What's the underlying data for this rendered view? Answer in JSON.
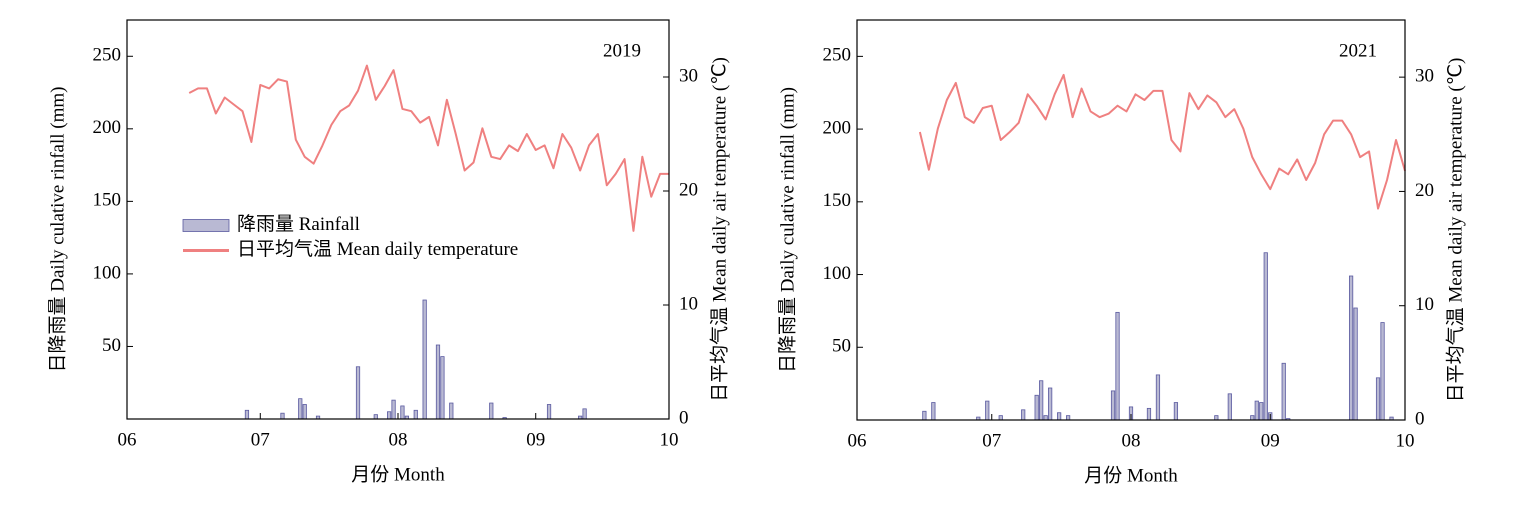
{
  "chart_data": [
    {
      "type": "bar_line",
      "annotation": "2019",
      "xlabel": "月份 Month",
      "ylabel": "日降雨量 Daily culative rinfall (mm)",
      "y2label": "日平均气温 Mean daily air temperature (℃)",
      "legend": "center-left",
      "xlim": [
        0,
        122
      ],
      "xticks": [
        {
          "value": 0,
          "label": "06"
        },
        {
          "value": 30,
          "label": "07"
        },
        {
          "value": 61,
          "label": "08"
        },
        {
          "value": 92,
          "label": "09"
        },
        {
          "value": 122,
          "label": "10"
        }
      ],
      "ylim": [
        0,
        275
      ],
      "yticks": [
        50,
        100,
        150,
        200,
        250
      ],
      "y2lim": [
        0,
        35
      ],
      "y2ticks": [
        0,
        10,
        20,
        30
      ],
      "series": [
        {
          "name": "降雨量 Rainfall",
          "type": "bar",
          "color": "#b9b9d3",
          "x": [
            27,
            35,
            39,
            40,
            43,
            52,
            56,
            59,
            60,
            62,
            63,
            65,
            67,
            70,
            71,
            73,
            82,
            85,
            95,
            102,
            103
          ],
          "values": [
            6,
            4,
            14,
            10,
            2,
            36,
            3,
            5,
            13,
            9,
            2,
            6,
            82,
            51,
            43,
            11,
            11,
            1,
            10,
            2,
            7
          ]
        },
        {
          "name": "日平均气温 Mean daily temperature",
          "type": "line",
          "axis": "y2",
          "color": "#ef8080",
          "x": [
            14,
            16,
            18,
            20,
            22,
            24,
            26,
            28,
            30,
            32,
            34,
            36,
            38,
            40,
            42,
            44,
            46,
            48,
            50,
            52,
            54,
            56,
            58,
            60,
            62,
            64,
            66,
            68,
            70,
            72,
            74,
            76,
            78,
            80,
            82,
            84,
            86,
            88,
            90,
            92,
            94,
            96,
            98,
            100,
            102,
            104,
            106,
            108,
            110,
            112,
            114,
            116,
            118,
            120,
            122
          ],
          "values": [
            28.6,
            29.0,
            29.0,
            26.8,
            28.2,
            27.6,
            27.0,
            24.3,
            29.3,
            29.0,
            29.8,
            29.6,
            24.5,
            23.0,
            22.4,
            24.0,
            25.8,
            27.0,
            27.5,
            28.8,
            31.0,
            28.0,
            29.2,
            30.6,
            27.2,
            27.0,
            26.0,
            26.5,
            24.0,
            28.0,
            25.0,
            21.8,
            22.5,
            25.5,
            23.0,
            22.8,
            24.0,
            23.5,
            25.0,
            23.6,
            24.0,
            22.0,
            25.0,
            23.8,
            21.8,
            24.0,
            25.0,
            20.5,
            21.5,
            22.8,
            16.5,
            23.0,
            19.5,
            21.5,
            21.5
          ]
        }
      ]
    },
    {
      "type": "bar_line",
      "annotation": "2021",
      "xlabel": "月份 Month",
      "ylabel": "日降雨量 Daily culative rinfall (mm)",
      "y2label": "日平均气温 Mean daily air temperature (℃)",
      "xlim": [
        0,
        122
      ],
      "xticks": [
        {
          "value": 0,
          "label": "06"
        },
        {
          "value": 30,
          "label": "07"
        },
        {
          "value": 61,
          "label": "08"
        },
        {
          "value": 92,
          "label": "09"
        },
        {
          "value": 122,
          "label": "10"
        }
      ],
      "ylim": [
        0,
        275
      ],
      "yticks": [
        50,
        100,
        150,
        200,
        250
      ],
      "y2lim": [
        0,
        35
      ],
      "y2ticks": [
        0,
        10,
        20,
        30
      ],
      "series": [
        {
          "type": "bar",
          "color": "#b9b9d3",
          "x": [
            15,
            17,
            27,
            29,
            32,
            37,
            40,
            41,
            42,
            43,
            45,
            47,
            57,
            58,
            61,
            65,
            67,
            71,
            80,
            83,
            88,
            89,
            90,
            91,
            92,
            95,
            96,
            110,
            111,
            116,
            117,
            119
          ],
          "values": [
            6,
            12,
            2,
            13,
            3,
            7,
            17,
            27,
            3,
            22,
            5,
            3,
            20,
            74,
            9,
            8,
            31,
            12,
            3,
            18,
            3,
            13,
            12,
            115,
            5,
            39,
            1,
            99,
            77,
            29,
            67,
            2
          ]
        },
        {
          "type": "line",
          "axis": "y2",
          "color": "#ef8080",
          "x": [
            14,
            16,
            18,
            20,
            22,
            24,
            26,
            28,
            30,
            32,
            34,
            36,
            38,
            40,
            42,
            44,
            46,
            48,
            50,
            52,
            54,
            56,
            58,
            60,
            62,
            64,
            66,
            68,
            70,
            72,
            74,
            76,
            78,
            80,
            82,
            84,
            86,
            88,
            90,
            92,
            94,
            96,
            98,
            100,
            102,
            104,
            106,
            108,
            110,
            112,
            114,
            116,
            118,
            120,
            122
          ],
          "values": [
            25.2,
            21.9,
            25.5,
            28.0,
            29.5,
            26.5,
            26.0,
            27.3,
            27.5,
            24.5,
            25.2,
            26.0,
            28.5,
            27.5,
            26.3,
            28.5,
            30.2,
            26.5,
            29.0,
            27.0,
            26.5,
            26.8,
            27.5,
            27.0,
            28.5,
            28.0,
            28.8,
            28.8,
            24.5,
            23.5,
            28.6,
            27.2,
            28.4,
            27.8,
            26.5,
            27.2,
            25.5,
            23.0,
            21.5,
            20.2,
            22.0,
            21.5,
            22.8,
            21.0,
            22.5,
            25.0,
            26.2,
            26.2,
            25.0,
            23.0,
            23.5,
            18.5,
            21.0,
            24.5,
            21.8
          ]
        }
      ]
    }
  ]
}
